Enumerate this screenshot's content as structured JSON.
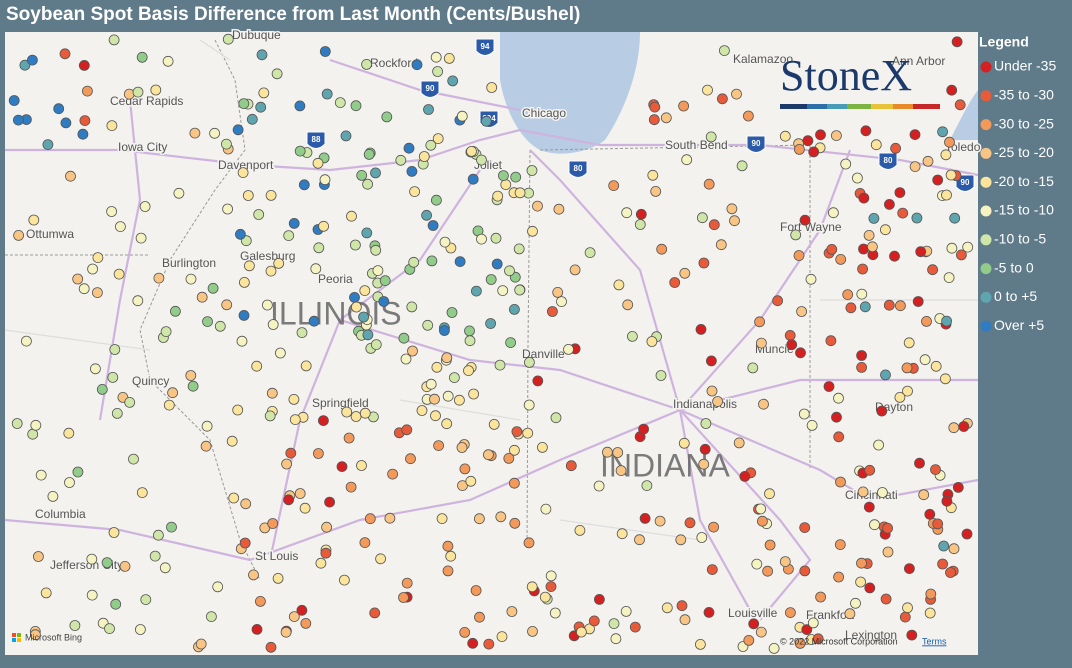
{
  "title": "Soybean Spot Basis Difference from Last Month (Cents/Bushel)",
  "legend": {
    "title": "Legend",
    "items": [
      {
        "label": "Under -35",
        "color": "#d42020"
      },
      {
        "label": "-35 to -30",
        "color": "#e85b3a"
      },
      {
        "label": "-30 to -25",
        "color": "#f39a5b"
      },
      {
        "label": "-25 to -20",
        "color": "#f8c584"
      },
      {
        "label": "-20 to -15",
        "color": "#fbe49c"
      },
      {
        "label": "-15 to -10",
        "color": "#f5f3c2"
      },
      {
        "label": "-10 to -5",
        "color": "#cfe6a8"
      },
      {
        "label": "-5 to 0",
        "color": "#92cc8a"
      },
      {
        "label": "0 to +5",
        "color": "#5fa5b0"
      },
      {
        "label": "Over +5",
        "color": "#2f7cc2"
      }
    ]
  },
  "map_labels": [
    "Dubuque",
    "Rockford",
    "Cedar Rapids",
    "Iowa City",
    "Davenport",
    "Chicago",
    "Joliet",
    "Kalamazoo",
    "Ann Arbor",
    "South Bend",
    "Toledo",
    "Fort Wayne",
    "Ottumwa",
    "Burlington",
    "Galesburg",
    "Peoria",
    "ILLINOIS",
    "Danville",
    "Muncie",
    "Quincy",
    "Springfield",
    "Indianapolis",
    "Dayton",
    "INDIANA",
    "Columbia",
    "Cincinnati",
    "St Louis",
    "Jefferson City",
    "Louisville",
    "Frankfort",
    "Lexington"
  ],
  "highways": [
    "94",
    "90",
    "294",
    "88",
    "80",
    "90",
    "80",
    "90"
  ],
  "logo": "StoneX",
  "attribution": {
    "provider": "Microsoft Bing",
    "copyright": "© 2022 Microsoft Corporation",
    "terms": "Terms"
  }
}
